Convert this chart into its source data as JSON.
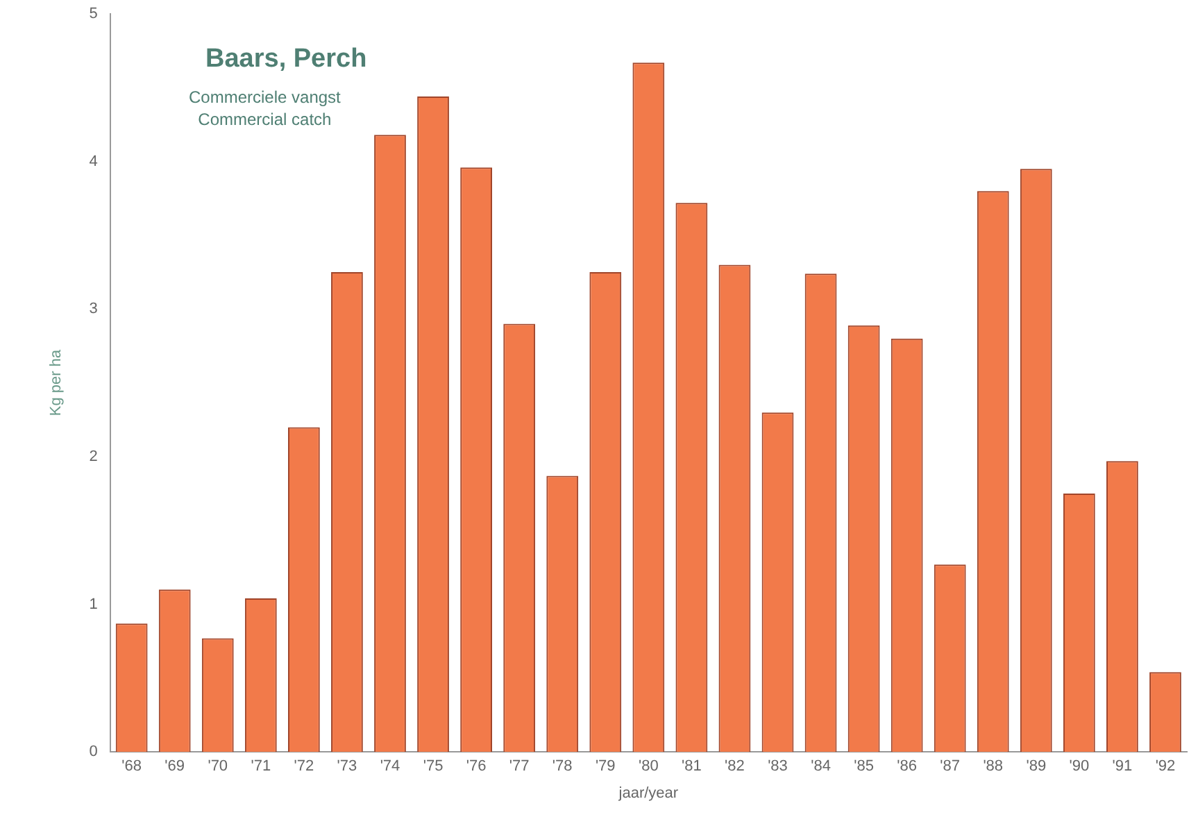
{
  "chart_data": {
    "type": "bar",
    "title": "Baars, Perch",
    "subtitle": "Commerciele vangst\nCommercial catch",
    "xlabel": "jaar/year",
    "ylabel": "Kg per ha",
    "categories": [
      "'68",
      "'69",
      "'70",
      "'71",
      "'72",
      "'73",
      "'74",
      "'75",
      "'76",
      "'77",
      "'78",
      "'79",
      "'80",
      "'81",
      "'82",
      "'83",
      "'84",
      "'85",
      "'86",
      "'87",
      "'88",
      "'89",
      "'90",
      "'91",
      "'92"
    ],
    "values": [
      0.87,
      1.1,
      0.77,
      1.04,
      2.2,
      3.25,
      4.18,
      4.44,
      3.96,
      2.9,
      1.87,
      3.25,
      4.67,
      3.72,
      3.3,
      2.3,
      3.24,
      2.89,
      2.8,
      1.27,
      3.8,
      3.95,
      1.75,
      1.97,
      0.54
    ],
    "color": "#f27a4a",
    "ylim": [
      0,
      5
    ],
    "yticks": [
      0,
      1,
      2,
      3,
      4,
      5
    ],
    "grid": false,
    "legend": false
  }
}
